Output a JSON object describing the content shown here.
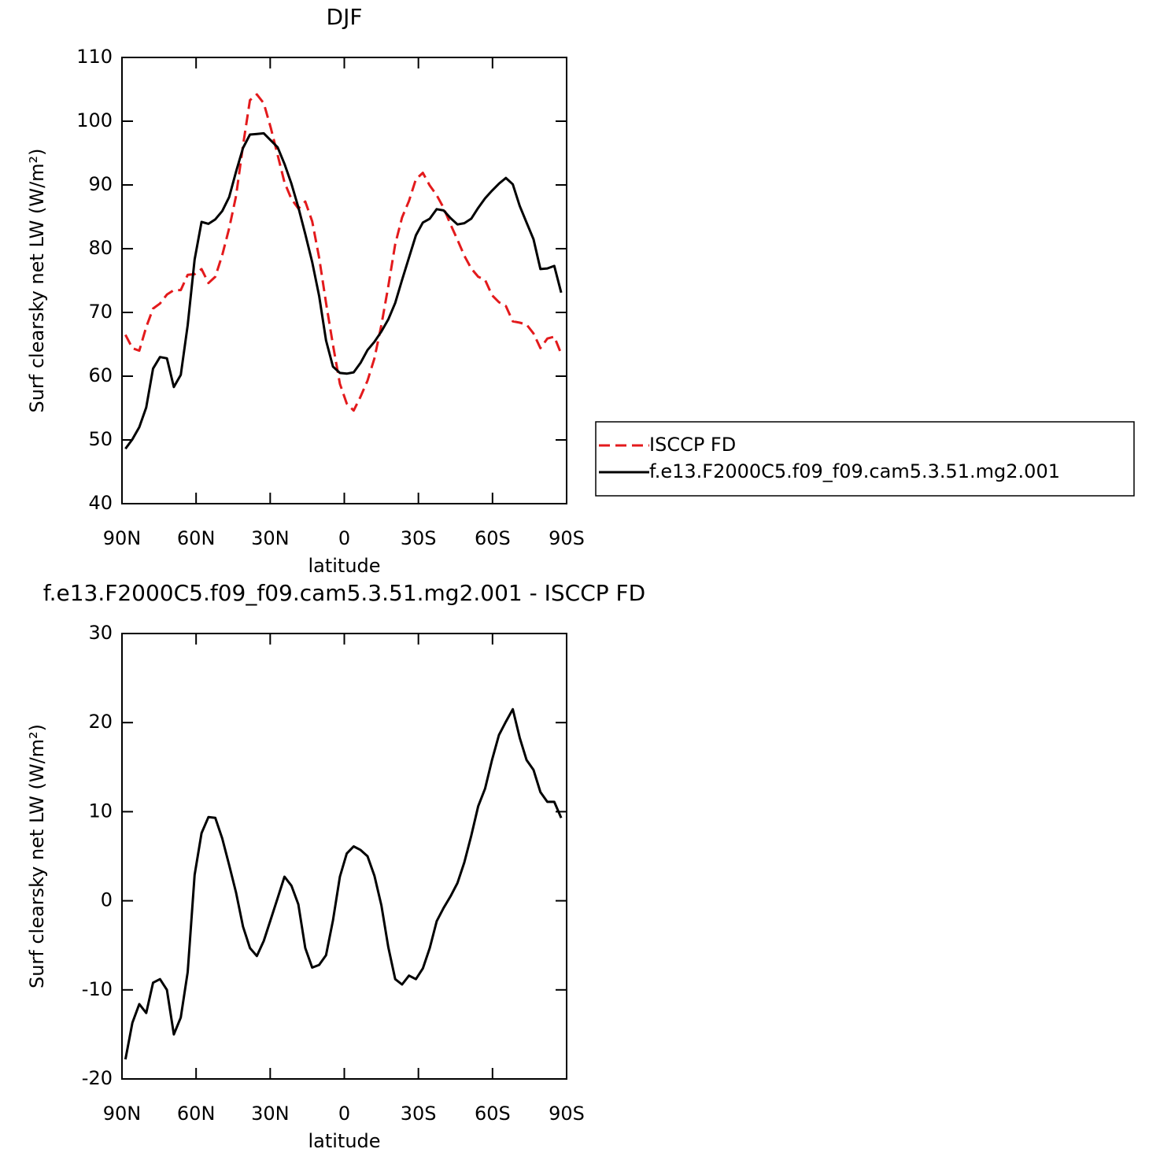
{
  "chart_data": [
    {
      "type": "line",
      "title": "DJF",
      "x_label": "latitude",
      "y_label": "Surf clearsky net LW (W/m²)",
      "x": [
        88.6,
        85.8,
        83.0,
        80.2,
        77.4,
        74.6,
        71.8,
        69.0,
        66.2,
        63.4,
        60.6,
        57.8,
        55.0,
        52.2,
        49.4,
        46.6,
        43.8,
        41.0,
        38.2,
        35.4,
        32.6,
        29.8,
        27.0,
        24.2,
        21.4,
        18.6,
        15.8,
        13.0,
        10.2,
        7.4,
        4.6,
        1.8,
        -1.0,
        -3.8,
        -6.6,
        -9.4,
        -12.2,
        -15.0,
        -17.8,
        -20.6,
        -23.4,
        -26.2,
        -29.0,
        -31.8,
        -34.6,
        -37.4,
        -40.2,
        -43.0,
        -45.8,
        -48.6,
        -51.4,
        -54.2,
        -57.0,
        -59.8,
        -62.6,
        -65.4,
        -68.2,
        -71.0,
        -73.8,
        -76.6,
        -79.4,
        -82.2,
        -85.0,
        -87.8
      ],
      "series": [
        {
          "name": "ISCCP FD",
          "color": "#e31a1c",
          "style": "dashed",
          "values": [
            66.5,
            64.4,
            64.0,
            67.7,
            70.6,
            71.4,
            72.8,
            73.5,
            73.5,
            75.9,
            76.0,
            76.8,
            74.6,
            75.6,
            79.0,
            83.2,
            88.3,
            96.2,
            103.3,
            104.2,
            102.8,
            99.0,
            94.7,
            90.4,
            87.8,
            86.3,
            87.4,
            84.3,
            78.6,
            71.5,
            64.9,
            58.8,
            55.7,
            54.6,
            56.8,
            59.3,
            62.8,
            68.0,
            74.1,
            80.7,
            84.9,
            87.5,
            90.9,
            91.9,
            89.9,
            88.4,
            86.4,
            83.8,
            81.4,
            78.9,
            76.9,
            75.6,
            75.1,
            72.7,
            71.6,
            71.0,
            68.6,
            68.4,
            68.1,
            66.7,
            64.4,
            65.9,
            66.2,
            63.5
          ]
        },
        {
          "name": "f.e13.F2000C5.f09_f09.cam5.3.51.mg2.001",
          "color": "#000000",
          "style": "solid",
          "values": [
            48.6,
            50.1,
            52.0,
            55.1,
            61.2,
            63.0,
            62.8,
            58.3,
            60.2,
            68.0,
            78.3,
            84.2,
            83.9,
            84.6,
            85.9,
            88.1,
            92.1,
            95.8,
            97.9,
            98.0,
            98.1,
            97.0,
            95.9,
            93.3,
            90.2,
            86.5,
            82.3,
            77.9,
            72.6,
            65.6,
            61.5,
            60.5,
            60.4,
            60.6,
            62.1,
            64.1,
            65.4,
            67.0,
            68.9,
            71.5,
            75.1,
            78.6,
            82.1,
            84.1,
            84.7,
            86.2,
            86.0,
            84.8,
            83.8,
            84.0,
            84.7,
            86.4,
            87.9,
            89.1,
            90.2,
            91.1,
            90.1,
            86.7,
            84.1,
            81.5,
            76.8,
            76.9,
            77.3,
            73.1
          ]
        }
      ],
      "xlim": [
        90,
        -90
      ],
      "xticks": [
        {
          "value": 90,
          "label": "90N"
        },
        {
          "value": 60,
          "label": "60N"
        },
        {
          "value": 30,
          "label": "30N"
        },
        0,
        {
          "value": -30,
          "label": "30S"
        },
        {
          "value": -60,
          "label": "60S"
        },
        {
          "value": -90,
          "label": "90S"
        }
      ],
      "ylim": [
        40,
        110
      ],
      "yticks": [
        40,
        50,
        60,
        70,
        80,
        90,
        100,
        110
      ],
      "legend": "right"
    },
    {
      "type": "line",
      "title": "f.e13.F2000C5.f09_f09.cam5.3.51.mg2.001 - ISCCP FD",
      "x_label": "latitude",
      "y_label": "Surf clearsky net LW (W/m²)",
      "x": [
        88.6,
        85.8,
        83.0,
        80.2,
        77.4,
        74.6,
        71.8,
        69.0,
        66.2,
        63.4,
        60.6,
        57.8,
        55.0,
        52.2,
        49.4,
        46.6,
        43.8,
        41.0,
        38.2,
        35.4,
        32.6,
        29.8,
        27.0,
        24.2,
        21.4,
        18.6,
        15.8,
        13.0,
        10.2,
        7.4,
        4.6,
        1.8,
        -1.0,
        -3.8,
        -6.6,
        -9.4,
        -12.2,
        -15.0,
        -17.8,
        -20.6,
        -23.4,
        -26.2,
        -29.0,
        -31.8,
        -34.6,
        -37.4,
        -40.2,
        -43.0,
        -45.8,
        -48.6,
        -51.4,
        -54.2,
        -57.0,
        -59.8,
        -62.6,
        -65.4,
        -68.2,
        -71.0,
        -73.8,
        -76.6,
        -79.4,
        -82.2,
        -85.0,
        -87.8
      ],
      "series": [
        {
          "color": "#000000",
          "style": "solid",
          "values": [
            -17.8,
            -13.7,
            -11.6,
            -12.6,
            -9.2,
            -8.8,
            -10.0,
            -15.0,
            -13.1,
            -8.0,
            2.9,
            7.6,
            9.4,
            9.3,
            7.0,
            4.0,
            0.9,
            -2.9,
            -5.3,
            -6.2,
            -4.5,
            -2.1,
            0.3,
            2.7,
            1.7,
            -0.4,
            -5.3,
            -7.5,
            -7.2,
            -6.1,
            -2.2,
            2.7,
            5.3,
            6.1,
            5.7,
            5.0,
            2.8,
            -0.5,
            -5.2,
            -8.8,
            -9.4,
            -8.4,
            -8.8,
            -7.6,
            -5.3,
            -2.3,
            -0.8,
            0.5,
            2.0,
            4.3,
            7.3,
            10.6,
            12.6,
            15.8,
            18.6,
            20.1,
            21.5,
            18.3,
            15.8,
            14.7,
            12.2,
            11.1,
            11.1,
            9.3
          ]
        }
      ],
      "xlim": [
        90,
        -90
      ],
      "xticks": [
        {
          "value": 90,
          "label": "90N"
        },
        {
          "value": 60,
          "label": "60N"
        },
        {
          "value": 30,
          "label": "30N"
        },
        0,
        {
          "value": -30,
          "label": "30S"
        },
        {
          "value": -60,
          "label": "60S"
        },
        {
          "value": -90,
          "label": "90S"
        }
      ],
      "ylim": [
        -20,
        30
      ],
      "yticks": [
        -20,
        -10,
        0,
        10,
        20,
        30
      ]
    }
  ]
}
